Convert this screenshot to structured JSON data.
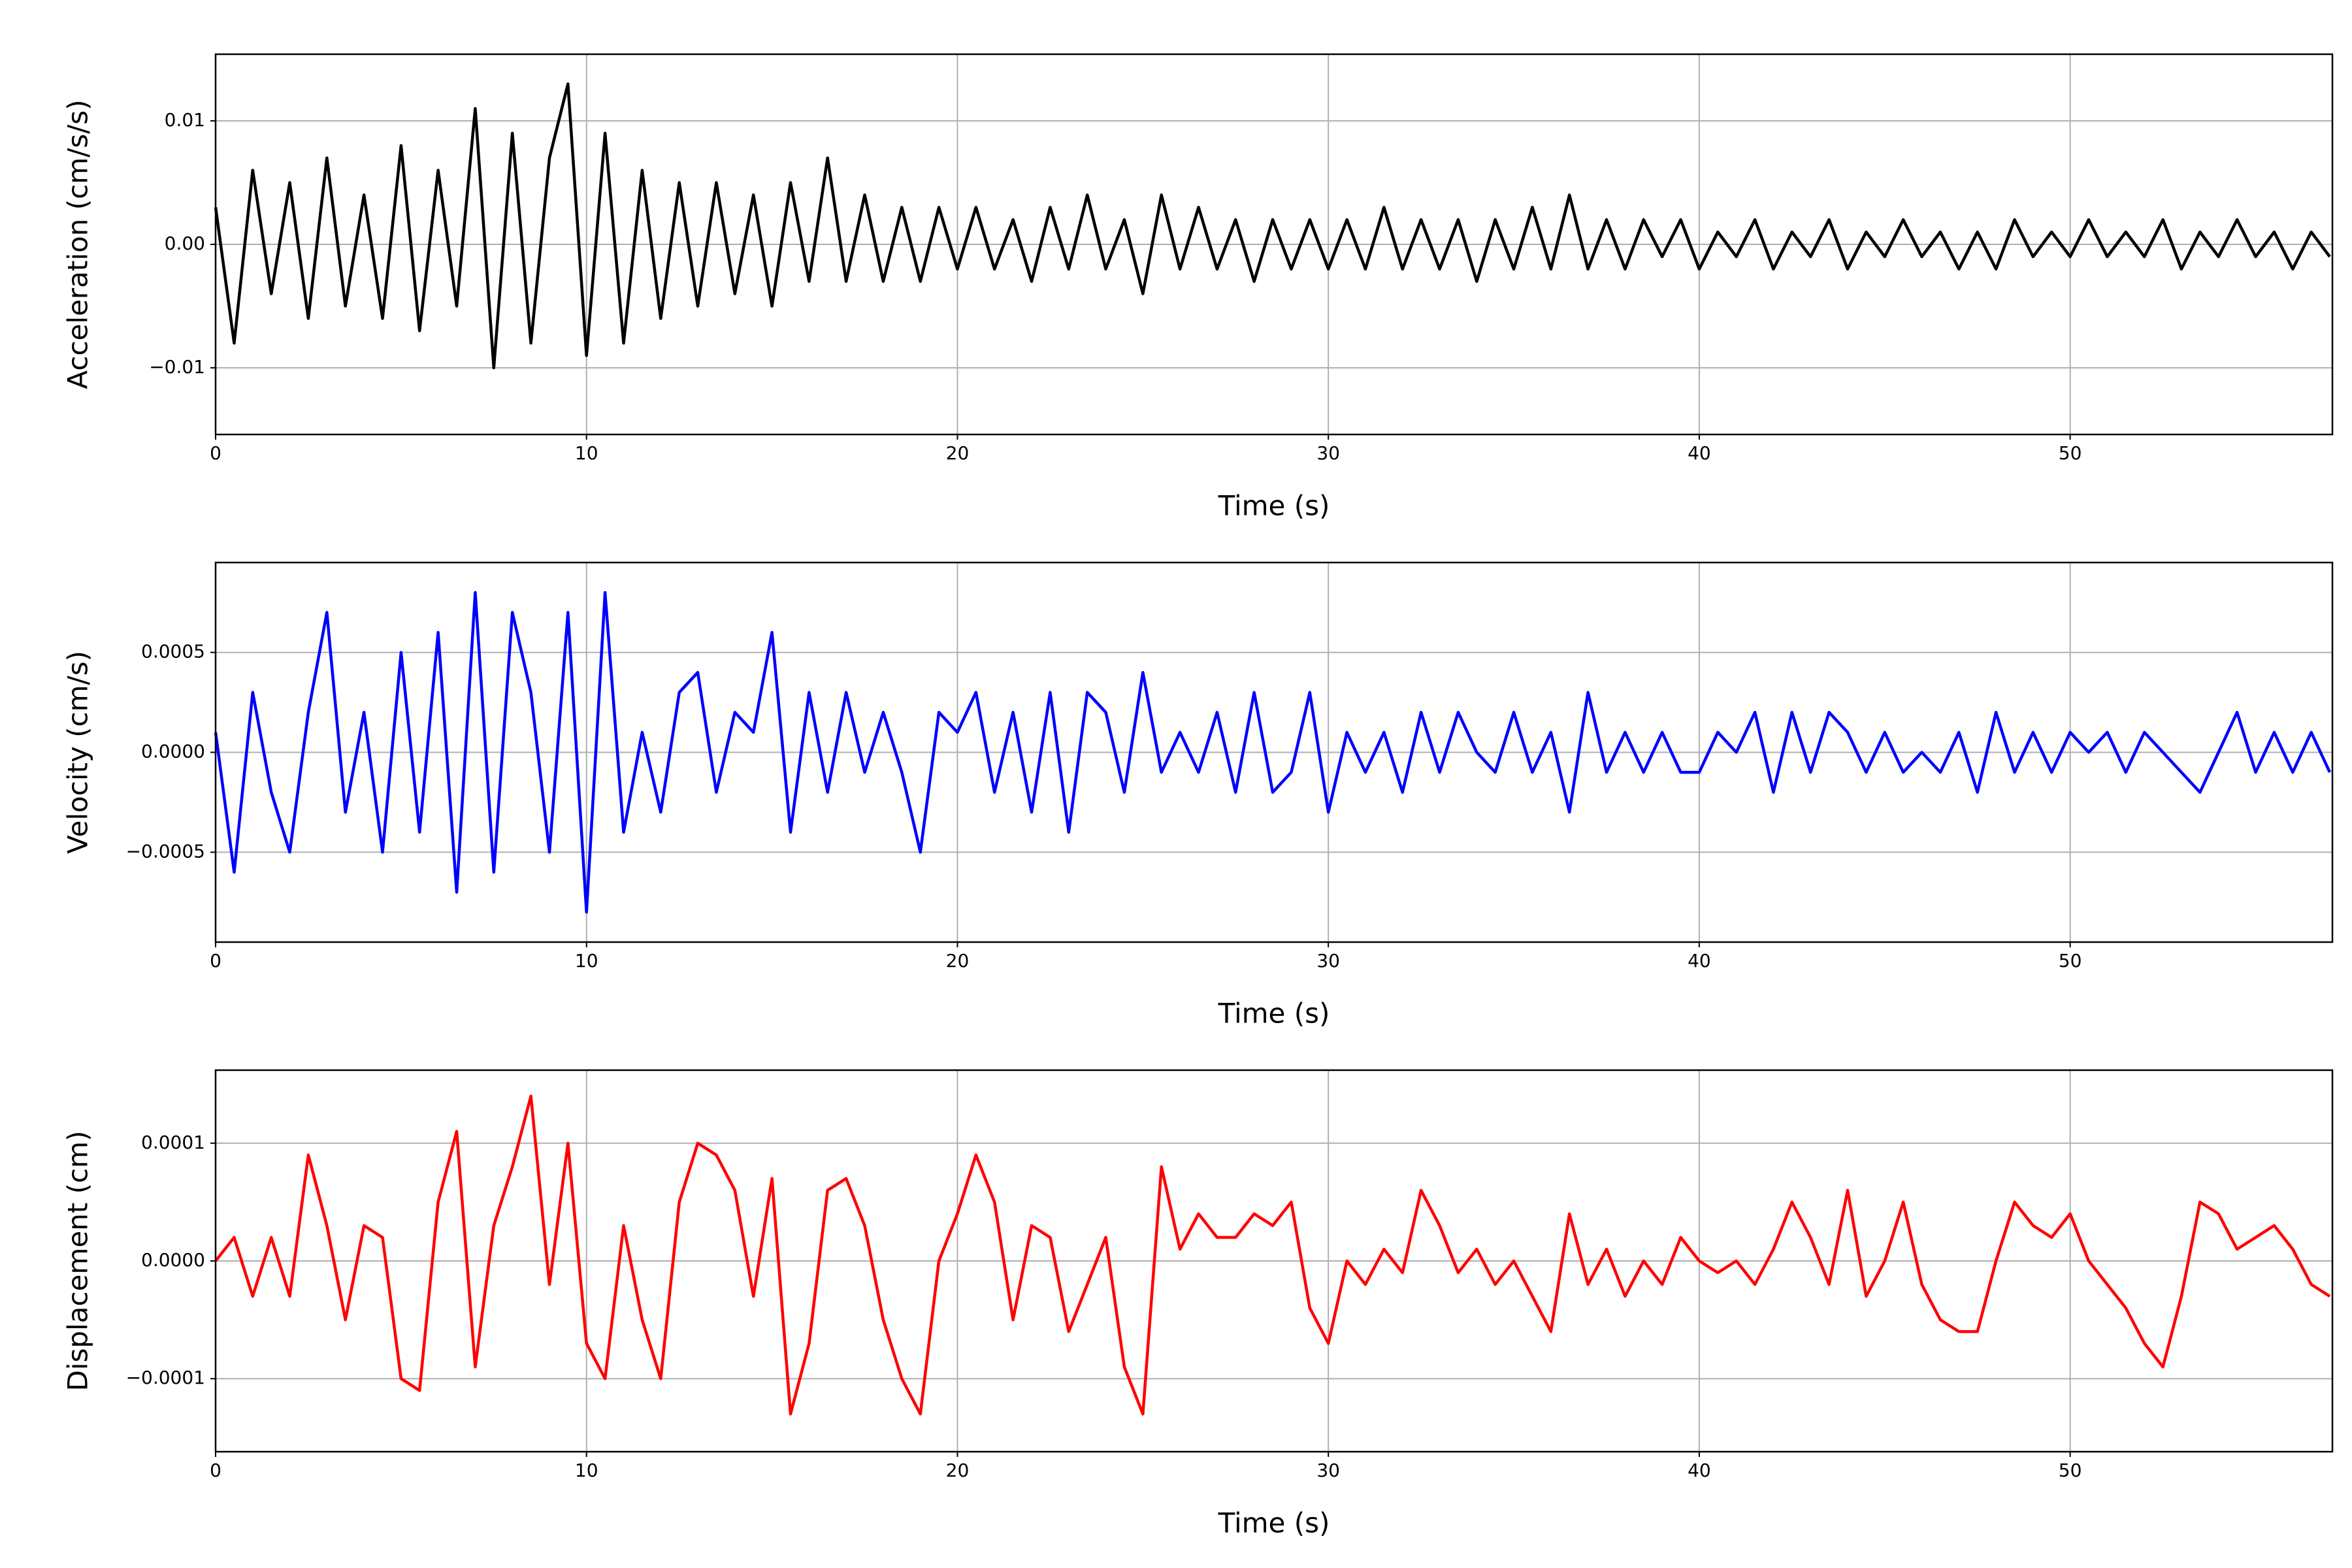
{
  "chart_data": [
    {
      "type": "line",
      "xlabel": "Time (s)",
      "ylabel": "Acceleration (cm/s/s)",
      "xlim": [
        0,
        57.07
      ],
      "xticks": [
        0,
        10,
        20,
        30,
        40,
        50
      ],
      "ylim": [
        -0.0154,
        0.0154
      ],
      "yticks": [
        {
          "value": -0.01,
          "label": "−0.01"
        },
        {
          "value": 0,
          "label": "0.00"
        },
        {
          "value": 0.01,
          "label": "0.01"
        }
      ],
      "grid": true,
      "x": [
        0,
        0.5,
        1,
        1.5,
        2,
        2.5,
        3,
        3.5,
        4,
        4.5,
        5,
        5.5,
        6,
        6.5,
        7,
        7.5,
        8,
        8.5,
        9,
        9.5,
        10,
        10.5,
        11,
        11.5,
        12,
        12.5,
        13,
        13.5,
        14,
        14.5,
        15,
        15.5,
        16,
        16.5,
        17,
        17.5,
        18,
        18.5,
        19,
        19.5,
        20,
        20.5,
        21,
        21.5,
        22,
        22.5,
        23,
        23.5,
        24,
        24.5,
        25,
        25.5,
        26,
        26.5,
        27,
        27.5,
        28,
        28.5,
        29,
        29.5,
        30,
        30.5,
        31,
        31.5,
        32,
        32.5,
        33,
        33.5,
        34,
        34.5,
        35,
        35.5,
        36,
        36.5,
        37,
        37.5,
        38,
        38.5,
        39,
        39.5,
        40,
        40.5,
        41,
        41.5,
        42,
        42.5,
        43,
        43.5,
        44,
        44.5,
        45,
        45.5,
        46,
        46.5,
        47,
        47.5,
        48,
        48.5,
        49,
        49.5,
        50,
        50.5,
        51,
        51.5,
        52,
        52.5,
        53,
        53.5,
        54,
        54.5,
        55,
        55.5,
        56,
        56.5,
        57
      ],
      "series": [
        {
          "color": "#000000",
          "values": [
            0.003,
            -0.008,
            0.006,
            -0.004,
            0.005,
            -0.006,
            0.007,
            -0.005,
            0.004,
            -0.006,
            0.008,
            -0.007,
            0.006,
            -0.005,
            0.011,
            -0.01,
            0.009,
            -0.008,
            0.007,
            0.013,
            -0.009,
            0.009,
            -0.008,
            0.006,
            -0.006,
            0.005,
            -0.005,
            0.005,
            -0.004,
            0.004,
            -0.005,
            0.005,
            -0.003,
            0.007,
            -0.003,
            0.004,
            -0.003,
            0.003,
            -0.003,
            0.003,
            -0.002,
            0.003,
            -0.002,
            0.002,
            -0.003,
            0.003,
            -0.002,
            0.004,
            -0.002,
            0.002,
            -0.004,
            0.004,
            -0.002,
            0.003,
            -0.002,
            0.002,
            -0.003,
            0.002,
            -0.002,
            0.002,
            -0.002,
            0.002,
            -0.002,
            0.003,
            -0.002,
            0.002,
            -0.002,
            0.002,
            -0.003,
            0.002,
            -0.002,
            0.003,
            -0.002,
            0.004,
            -0.002,
            0.002,
            -0.002,
            0.002,
            -0.001,
            0.002,
            -0.002,
            0.001,
            -0.001,
            0.002,
            -0.002,
            0.001,
            -0.001,
            0.002,
            -0.002,
            0.001,
            -0.001,
            0.002,
            -0.001,
            0.001,
            -0.002,
            0.001,
            -0.002,
            0.002,
            -0.001,
            0.001,
            -0.001,
            0.002,
            -0.001,
            0.001,
            -0.001,
            0.002,
            -0.002,
            0.001,
            -0.001,
            0.002,
            -0.001,
            0.001,
            -0.002,
            0.001,
            -0.001
          ]
        }
      ]
    },
    {
      "type": "line",
      "xlabel": "Time (s)",
      "ylabel": "Velocity (cm/s)",
      "xlim": [
        0,
        57.07
      ],
      "xticks": [
        0,
        10,
        20,
        30,
        40,
        50
      ],
      "ylim": [
        -0.00095,
        0.00095
      ],
      "yticks": [
        {
          "value": -0.0005,
          "label": "−0.0005"
        },
        {
          "value": 0,
          "label": "0.0000"
        },
        {
          "value": 0.0005,
          "label": "0.0005"
        }
      ],
      "grid": true,
      "x": [
        0,
        0.5,
        1,
        1.5,
        2,
        2.5,
        3,
        3.5,
        4,
        4.5,
        5,
        5.5,
        6,
        6.5,
        7,
        7.5,
        8,
        8.5,
        9,
        9.5,
        10,
        10.5,
        11,
        11.5,
        12,
        12.5,
        13,
        13.5,
        14,
        14.5,
        15,
        15.5,
        16,
        16.5,
        17,
        17.5,
        18,
        18.5,
        19,
        19.5,
        20,
        20.5,
        21,
        21.5,
        22,
        22.5,
        23,
        23.5,
        24,
        24.5,
        25,
        25.5,
        26,
        26.5,
        27,
        27.5,
        28,
        28.5,
        29,
        29.5,
        30,
        30.5,
        31,
        31.5,
        32,
        32.5,
        33,
        33.5,
        34,
        34.5,
        35,
        35.5,
        36,
        36.5,
        37,
        37.5,
        38,
        38.5,
        39,
        39.5,
        40,
        40.5,
        41,
        41.5,
        42,
        42.5,
        43,
        43.5,
        44,
        44.5,
        45,
        45.5,
        46,
        46.5,
        47,
        47.5,
        48,
        48.5,
        49,
        49.5,
        50,
        50.5,
        51,
        51.5,
        52,
        52.5,
        53,
        53.5,
        54,
        54.5,
        55,
        55.5,
        56,
        56.5,
        57
      ],
      "series": [
        {
          "color": "#0000ff",
          "values": [
            0.0001,
            -0.0006,
            0.0003,
            -0.0002,
            -0.0005,
            0.0002,
            0.0007,
            -0.0003,
            0.0002,
            -0.0005,
            0.0005,
            -0.0004,
            0.0006,
            -0.0007,
            0.0008,
            -0.0006,
            0.0007,
            0.0003,
            -0.0005,
            0.0007,
            -0.0008,
            0.0008,
            -0.0004,
            0.0001,
            -0.0003,
            0.0003,
            0.0004,
            -0.0002,
            0.0002,
            0.0001,
            0.0006,
            -0.0004,
            0.0003,
            -0.0002,
            0.0003,
            -0.0001,
            0.0002,
            -0.0001,
            -0.0005,
            0.0002,
            0.0001,
            0.0003,
            -0.0002,
            0.0002,
            -0.0003,
            0.0003,
            -0.0004,
            0.0003,
            0.0002,
            -0.0002,
            0.0004,
            -0.0001,
            0.0001,
            -0.0001,
            0.0002,
            -0.0002,
            0.0003,
            -0.0002,
            -0.0001,
            0.0003,
            -0.0003,
            0.0001,
            -0.0001,
            0.0001,
            -0.0002,
            0.0002,
            -0.0001,
            0.0002,
            0,
            -0.0001,
            0.0002,
            -0.0001,
            0.0001,
            -0.0003,
            0.0003,
            -0.0001,
            0.0001,
            -0.0001,
            0.0001,
            -0.0001,
            -0.0001,
            0.0001,
            0,
            0.0002,
            -0.0002,
            0.0002,
            -0.0001,
            0.0002,
            0.0001,
            -0.0001,
            0.0001,
            -0.0001,
            0,
            -0.0001,
            0.0001,
            -0.0002,
            0.0002,
            -0.0001,
            0.0001,
            -0.0001,
            0.0001,
            0,
            0.0001,
            -0.0001,
            0.0001,
            0,
            -0.0001,
            -0.0002,
            0,
            0.0002,
            -0.0001,
            0.0001,
            -0.0001,
            0.0001,
            -0.0001
          ]
        }
      ]
    },
    {
      "type": "line",
      "xlabel": "Time (s)",
      "ylabel": "Displacement (cm)",
      "xlim": [
        0,
        57.07
      ],
      "xticks": [
        0,
        10,
        20,
        30,
        40,
        50
      ],
      "ylim": [
        -0.000162,
        0.000162
      ],
      "yticks": [
        {
          "value": -0.0001,
          "label": "−0.0001"
        },
        {
          "value": 0,
          "label": "0.0000"
        },
        {
          "value": 0.0001,
          "label": "0.0001"
        }
      ],
      "grid": true,
      "x": [
        0,
        0.5,
        1,
        1.5,
        2,
        2.5,
        3,
        3.5,
        4,
        4.5,
        5,
        5.5,
        6,
        6.5,
        7,
        7.5,
        8,
        8.5,
        9,
        9.5,
        10,
        10.5,
        11,
        11.5,
        12,
        12.5,
        13,
        13.5,
        14,
        14.5,
        15,
        15.5,
        16,
        16.5,
        17,
        17.5,
        18,
        18.5,
        19,
        19.5,
        20,
        20.5,
        21,
        21.5,
        22,
        22.5,
        23,
        23.5,
        24,
        24.5,
        25,
        25.5,
        26,
        26.5,
        27,
        27.5,
        28,
        28.5,
        29,
        29.5,
        30,
        30.5,
        31,
        31.5,
        32,
        32.5,
        33,
        33.5,
        34,
        34.5,
        35,
        35.5,
        36,
        36.5,
        37,
        37.5,
        38,
        38.5,
        39,
        39.5,
        40,
        40.5,
        41,
        41.5,
        42,
        42.5,
        43,
        43.5,
        44,
        44.5,
        45,
        45.5,
        46,
        46.5,
        47,
        47.5,
        48,
        48.5,
        49,
        49.5,
        50,
        50.5,
        51,
        51.5,
        52,
        52.5,
        53,
        53.5,
        54,
        54.5,
        55,
        55.5,
        56,
        56.5,
        57
      ],
      "series": [
        {
          "color": "#ff0000",
          "values": [
            0,
            2e-05,
            -3e-05,
            2e-05,
            -3e-05,
            9e-05,
            3e-05,
            -5e-05,
            3e-05,
            2e-05,
            -0.0001,
            -0.00011,
            5e-05,
            0.00011,
            -9e-05,
            3e-05,
            8e-05,
            0.00014,
            -2e-05,
            0.0001,
            -7e-05,
            -0.0001,
            3e-05,
            -5e-05,
            -0.0001,
            5e-05,
            0.0001,
            9e-05,
            6e-05,
            -3e-05,
            7e-05,
            -0.00013,
            -7e-05,
            6e-05,
            7e-05,
            3e-05,
            -5e-05,
            -0.0001,
            -0.00013,
            0,
            4e-05,
            9e-05,
            5e-05,
            -5e-05,
            3e-05,
            2e-05,
            -6e-05,
            -2e-05,
            2e-05,
            -9e-05,
            -0.00013,
            8e-05,
            1e-05,
            4e-05,
            2e-05,
            2e-05,
            4e-05,
            3e-05,
            5e-05,
            -4e-05,
            -7e-05,
            0,
            -2e-05,
            1e-05,
            -1e-05,
            6e-05,
            3e-05,
            -1e-05,
            1e-05,
            -2e-05,
            0,
            -3e-05,
            -6e-05,
            4e-05,
            -2e-05,
            1e-05,
            -3e-05,
            0,
            -2e-05,
            2e-05,
            0,
            -1e-05,
            0,
            -2e-05,
            1e-05,
            5e-05,
            2e-05,
            -2e-05,
            6e-05,
            -3e-05,
            0,
            5e-05,
            -2e-05,
            -5e-05,
            -6e-05,
            -6e-05,
            0,
            5e-05,
            3e-05,
            2e-05,
            4e-05,
            0,
            -2e-05,
            -4e-05,
            -7e-05,
            -9e-05,
            -3e-05,
            5e-05,
            4e-05,
            1e-05,
            2e-05,
            3e-05,
            1e-05,
            -2e-05,
            -3e-05
          ]
        }
      ]
    }
  ]
}
